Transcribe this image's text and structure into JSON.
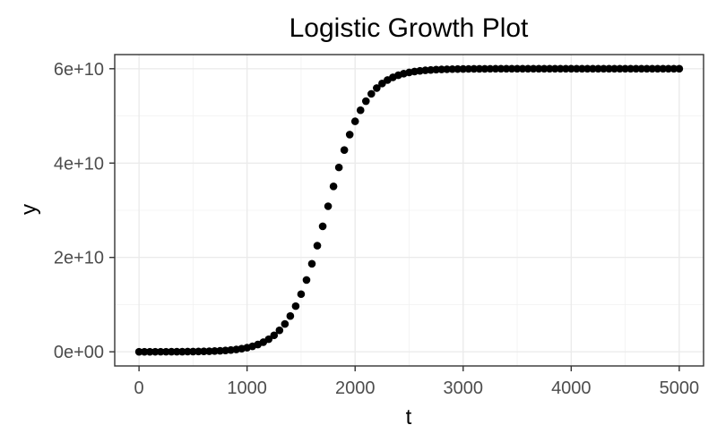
{
  "chart_data": {
    "type": "scatter",
    "title": "Logistic Growth Plot",
    "xlabel": "t",
    "ylabel": "y",
    "xlim": [
      -225,
      5225
    ],
    "ylim": [
      -3000000000,
      63000000000
    ],
    "x_ticks": [
      0,
      1000,
      2000,
      3000,
      4000,
      5000
    ],
    "x_tick_labels": [
      "0",
      "1000",
      "2000",
      "3000",
      "4000",
      "5000"
    ],
    "y_ticks": [
      0,
      20000000000,
      40000000000,
      60000000000
    ],
    "y_tick_labels": [
      "0e+00",
      "2e+10",
      "4e+10",
      "6e+10"
    ],
    "grid": true,
    "logistic": {
      "K": 60000000000,
      "t_mid": 1740,
      "scale": 176,
      "step": 50,
      "t_start": 0,
      "t_end": 5000
    },
    "colors": {
      "points": "#000000",
      "grid": "#ebebeb",
      "border": "#333333"
    }
  }
}
